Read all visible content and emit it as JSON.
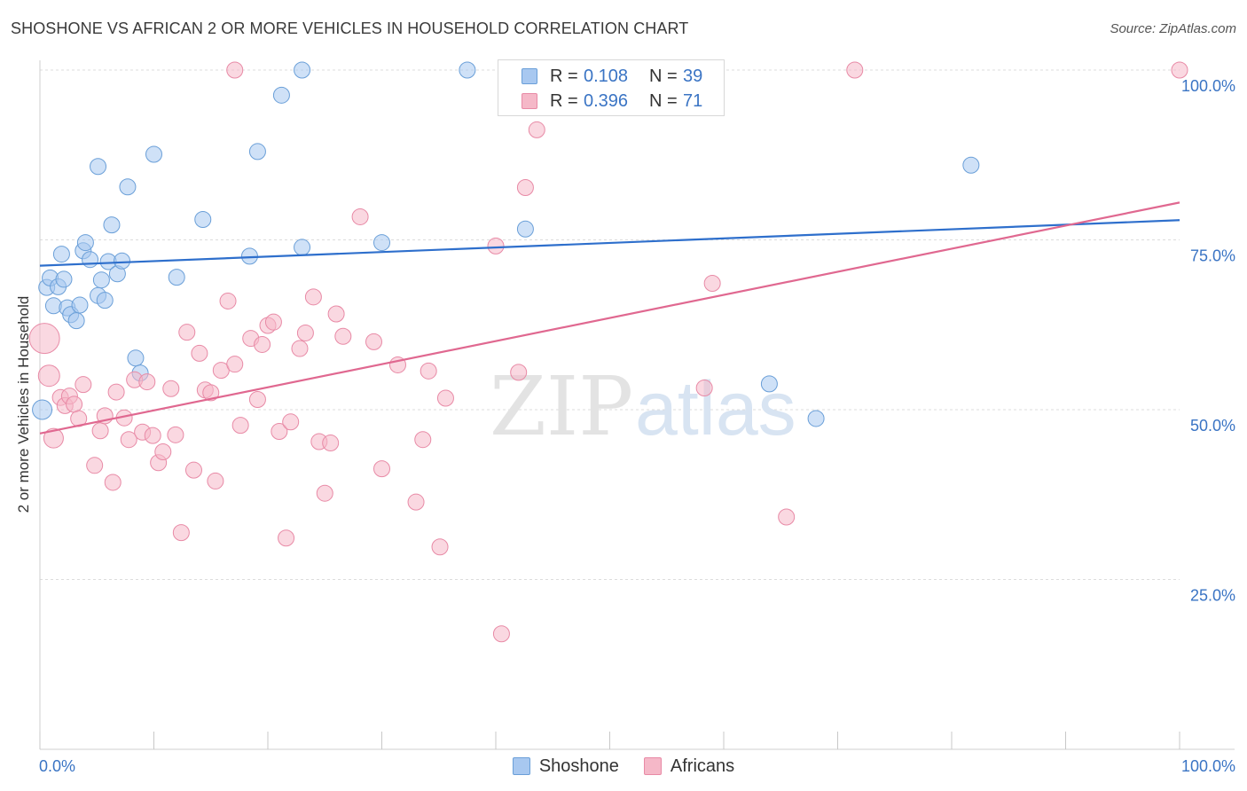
{
  "title": "SHOSHONE VS AFRICAN 2 OR MORE VEHICLES IN HOUSEHOLD CORRELATION CHART",
  "source": "Source: ZipAtlas.com",
  "watermark": {
    "zip": "ZIP",
    "atlas": "atlas"
  },
  "legend_top": [
    {
      "r_label": "R =",
      "r_value": "0.108",
      "n_label": "N =",
      "n_value": "39",
      "color": "#a8c8f0"
    },
    {
      "r_label": "R =",
      "r_value": "0.396",
      "n_label": "N =",
      "n_value": "71",
      "color": "#f5b8c8"
    }
  ],
  "chart_data": {
    "type": "scatter",
    "title": "SHOSHONE VS AFRICAN 2 OR MORE VEHICLES IN HOUSEHOLD CORRELATION CHART",
    "xlabel": "",
    "ylabel": "2 or more Vehicles in Household",
    "xlim": [
      0,
      100
    ],
    "ylim": [
      0,
      100
    ],
    "x_tick_labels": [
      "0.0%",
      "100.0%"
    ],
    "y_tick_labels": [
      "25.0%",
      "50.0%",
      "75.0%",
      "100.0%"
    ],
    "y_ticks": [
      25,
      50,
      75,
      100
    ],
    "grid": true,
    "legend_position": "bottom",
    "series": [
      {
        "name": "Shoshone",
        "color": "#a8c8f0",
        "stroke": "#6a9fd8",
        "line_color": "#2e6fcc",
        "trend": [
          [
            0,
            71.2
          ],
          [
            100,
            77.9
          ]
        ],
        "points": [
          [
            0.6,
            68.0
          ],
          [
            0.9,
            69.4
          ],
          [
            1.2,
            65.3
          ],
          [
            1.6,
            68.1
          ],
          [
            1.9,
            72.9
          ],
          [
            2.1,
            69.2
          ],
          [
            2.4,
            65.0
          ],
          [
            2.7,
            64.0
          ],
          [
            3.2,
            63.1
          ],
          [
            3.5,
            65.4
          ],
          [
            3.8,
            73.4
          ],
          [
            4.0,
            74.6
          ],
          [
            4.4,
            72.1
          ],
          [
            5.1,
            66.8
          ],
          [
            5.4,
            69.1
          ],
          [
            5.7,
            66.1
          ],
          [
            6.0,
            71.8
          ],
          [
            6.3,
            77.2
          ],
          [
            6.8,
            70.0
          ],
          [
            7.2,
            71.9
          ],
          [
            5.1,
            85.8
          ],
          [
            7.7,
            82.8
          ],
          [
            8.4,
            57.6
          ],
          [
            8.8,
            55.4
          ],
          [
            10.0,
            87.6
          ],
          [
            12.0,
            69.5
          ],
          [
            14.3,
            78.0
          ],
          [
            18.4,
            72.6
          ],
          [
            19.1,
            88.0
          ],
          [
            21.2,
            96.3
          ],
          [
            23.0,
            73.9
          ],
          [
            23.0,
            100.0
          ],
          [
            30.0,
            74.6
          ],
          [
            37.5,
            100.0
          ],
          [
            42.6,
            76.6
          ],
          [
            64.0,
            53.8
          ],
          [
            68.1,
            48.7
          ],
          [
            81.7,
            86.0
          ],
          [
            0.2,
            50.0
          ]
        ]
      },
      {
        "name": "Africans",
        "color": "#f5b8c8",
        "stroke": "#e88aa6",
        "line_color": "#e06890",
        "trend": [
          [
            0,
            46.5
          ],
          [
            100,
            80.5
          ]
        ],
        "points": [
          [
            0.4,
            60.5
          ],
          [
            0.8,
            55.0
          ],
          [
            1.2,
            45.8
          ],
          [
            1.8,
            51.8
          ],
          [
            2.2,
            50.6
          ],
          [
            2.6,
            52.0
          ],
          [
            3.0,
            50.8
          ],
          [
            3.4,
            48.7
          ],
          [
            3.8,
            53.7
          ],
          [
            4.8,
            41.8
          ],
          [
            5.3,
            46.9
          ],
          [
            5.7,
            49.1
          ],
          [
            6.4,
            39.3
          ],
          [
            6.7,
            52.6
          ],
          [
            7.4,
            48.8
          ],
          [
            7.8,
            45.6
          ],
          [
            8.3,
            54.4
          ],
          [
            9.0,
            46.7
          ],
          [
            9.4,
            54.1
          ],
          [
            9.9,
            46.2
          ],
          [
            10.4,
            42.2
          ],
          [
            10.8,
            43.8
          ],
          [
            11.5,
            53.1
          ],
          [
            11.9,
            46.3
          ],
          [
            12.4,
            31.9
          ],
          [
            12.9,
            61.4
          ],
          [
            13.5,
            41.1
          ],
          [
            14.0,
            58.3
          ],
          [
            14.5,
            52.9
          ],
          [
            15.0,
            52.5
          ],
          [
            15.4,
            39.5
          ],
          [
            15.9,
            55.8
          ],
          [
            16.5,
            66.0
          ],
          [
            17.1,
            56.7
          ],
          [
            17.6,
            47.7
          ],
          [
            17.1,
            100.0
          ],
          [
            18.5,
            60.5
          ],
          [
            19.1,
            51.5
          ],
          [
            19.5,
            59.6
          ],
          [
            20.0,
            62.4
          ],
          [
            20.5,
            62.9
          ],
          [
            21.0,
            46.8
          ],
          [
            21.6,
            31.1
          ],
          [
            22.0,
            48.2
          ],
          [
            22.8,
            59.0
          ],
          [
            23.3,
            61.3
          ],
          [
            24.0,
            66.6
          ],
          [
            24.5,
            45.3
          ],
          [
            25.0,
            37.7
          ],
          [
            25.5,
            45.1
          ],
          [
            26.0,
            64.1
          ],
          [
            26.6,
            60.8
          ],
          [
            28.1,
            78.4
          ],
          [
            29.3,
            60.0
          ],
          [
            30.0,
            41.3
          ],
          [
            31.4,
            56.6
          ],
          [
            33.0,
            36.4
          ],
          [
            33.6,
            45.6
          ],
          [
            34.1,
            55.7
          ],
          [
            35.1,
            29.8
          ],
          [
            35.6,
            51.7
          ],
          [
            40.0,
            74.1
          ],
          [
            40.5,
            17.0
          ],
          [
            42.0,
            55.5
          ],
          [
            42.6,
            82.7
          ],
          [
            43.6,
            91.2
          ],
          [
            58.3,
            53.2
          ],
          [
            59.0,
            68.6
          ],
          [
            65.5,
            34.2
          ],
          [
            71.5,
            100.0
          ],
          [
            100.0,
            100.0
          ]
        ]
      }
    ]
  }
}
